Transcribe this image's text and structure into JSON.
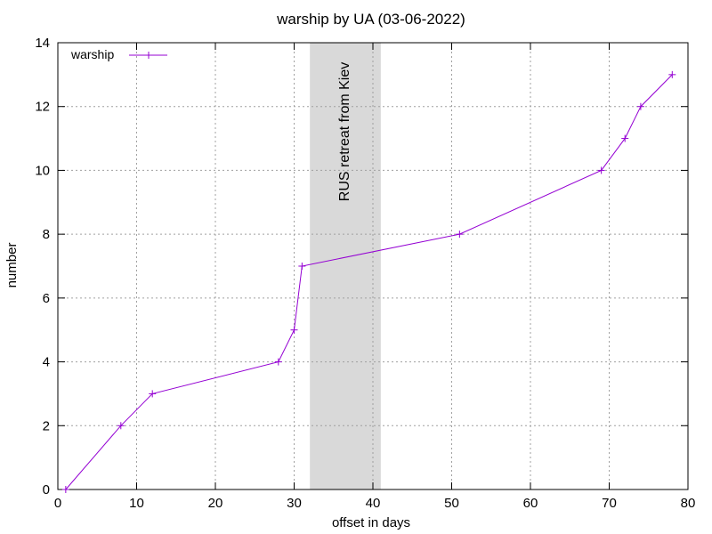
{
  "chart_data": {
    "type": "line",
    "title": "warship by UA (03-06-2022)",
    "xlabel": "offset in days",
    "ylabel": "number",
    "xlim": [
      0,
      80
    ],
    "ylim": [
      0,
      14
    ],
    "x_ticks": [
      0,
      10,
      20,
      30,
      40,
      50,
      60,
      70,
      80
    ],
    "y_ticks": [
      0,
      2,
      4,
      6,
      8,
      10,
      12,
      14
    ],
    "grid": true,
    "legend_position": "top-left",
    "series": [
      {
        "name": "warship",
        "color": "#9400d3",
        "marker": "plus",
        "x": [
          1,
          8,
          12,
          28,
          30,
          31,
          51,
          69,
          72,
          74,
          78
        ],
        "y": [
          0,
          2,
          3,
          4,
          5,
          7,
          8,
          10,
          11,
          12,
          13
        ]
      }
    ],
    "annotations": [
      {
        "type": "shaded-span",
        "x_start": 32,
        "x_end": 41,
        "label": "RUS retreat from Kiev",
        "color": "#d9d9d9"
      }
    ]
  }
}
